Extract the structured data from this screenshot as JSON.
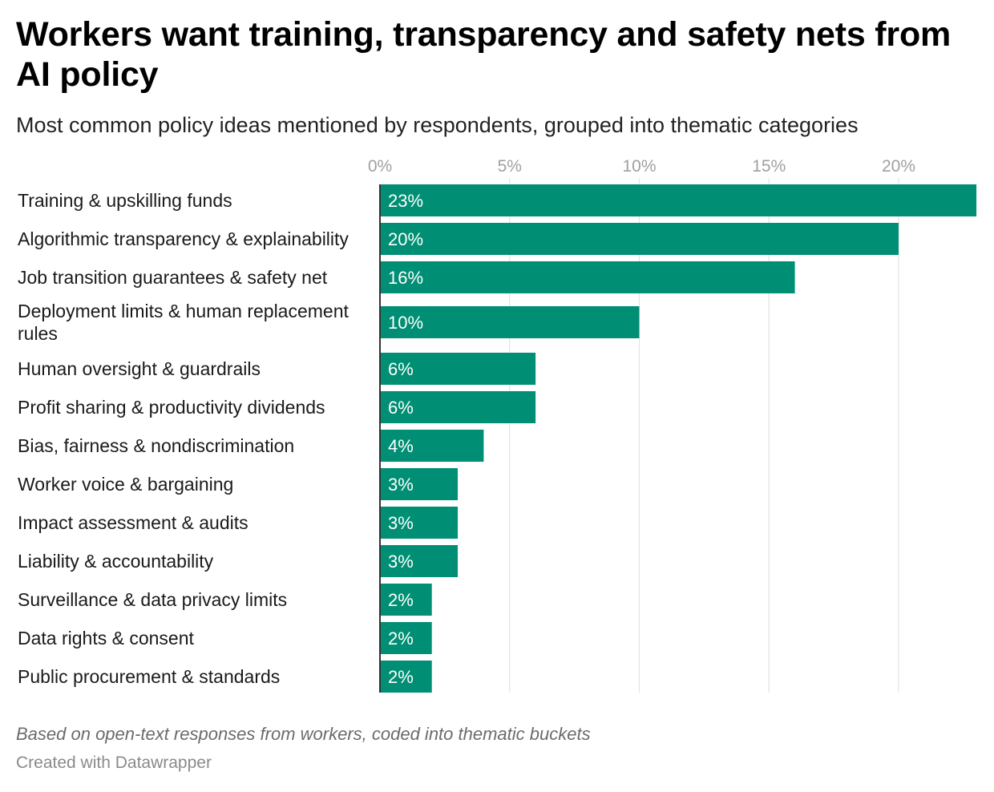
{
  "title": "Workers want training, transparency and safety nets from AI policy",
  "subtitle": "Most common policy ideas mentioned by respondents, grouped into thematic categories",
  "note": "Based on open-text responses from workers, coded into thematic buckets",
  "credit": "Created with Datawrapper",
  "colors": {
    "bar": "#008f74",
    "grid": "#e3e3e3",
    "axis_text": "#a0a0a0",
    "baseline": "#333333"
  },
  "chart_data": {
    "type": "bar",
    "orientation": "horizontal",
    "x_ticks": [
      0,
      5,
      10,
      15,
      20
    ],
    "x_tick_labels": [
      "0%",
      "5%",
      "10%",
      "15%",
      "20%"
    ],
    "xlim": [
      0,
      23
    ],
    "categories": [
      "Training & upskilling funds",
      "Algorithmic transparency & explainability",
      "Job transition guarantees & safety net",
      "Deployment limits & human replacement rules",
      "Human oversight & guardrails",
      "Profit sharing & productivity dividends",
      "Bias, fairness & nondiscrimination",
      "Worker voice & bargaining",
      "Impact assessment & audits",
      "Liability & accountability",
      "Surveillance & data privacy limits",
      "Data rights & consent",
      "Public procurement & standards"
    ],
    "values": [
      23,
      20,
      16,
      10,
      6,
      6,
      4,
      3,
      3,
      3,
      2,
      2,
      2
    ],
    "value_labels": [
      "23%",
      "20%",
      "16%",
      "10%",
      "6%",
      "6%",
      "4%",
      "3%",
      "3%",
      "3%",
      "2%",
      "2%",
      "2%"
    ]
  }
}
